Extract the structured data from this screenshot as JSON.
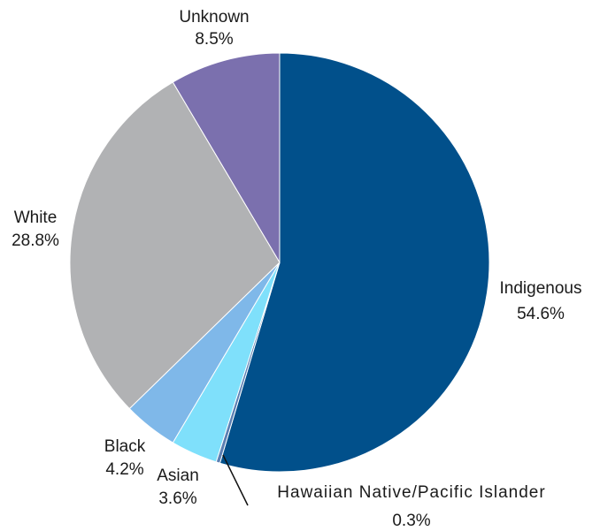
{
  "chart_data": {
    "type": "pie",
    "title": "",
    "slices": [
      {
        "label": "Indigenous",
        "value_label": "54.6%",
        "value": 54.6,
        "color": "#01508b"
      },
      {
        "label": "Hawaiian Native/Pacific Islander",
        "value_label": "0.3%",
        "value": 0.3,
        "color": "#5b7fb3"
      },
      {
        "label": "Asian",
        "value_label": "3.6%",
        "value": 3.6,
        "color": "#7fe0fb"
      },
      {
        "label": "Black",
        "value_label": "4.2%",
        "value": 4.2,
        "color": "#7fb8e9"
      },
      {
        "label": "White",
        "value_label": "28.8%",
        "value": 28.8,
        "color": "#b1b2b4"
      },
      {
        "label": "Unknown",
        "value_label": "8.5%",
        "value": 8.5,
        "color": "#7b70ae"
      }
    ],
    "start_angle": "12 o'clock",
    "direction": "clockwise",
    "legend": "none"
  }
}
